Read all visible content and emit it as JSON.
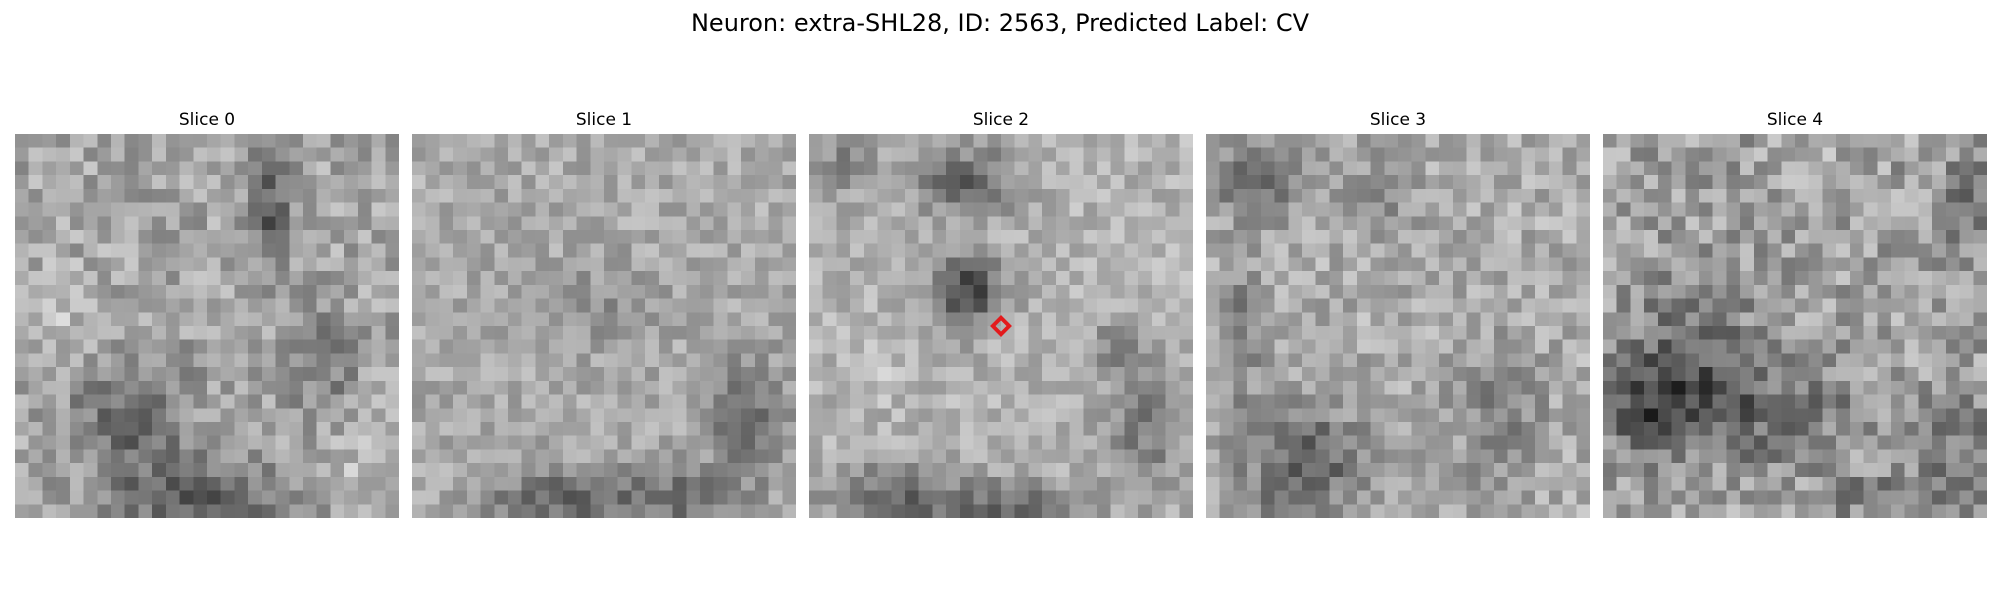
{
  "figure": {
    "title": "Neuron: extra-SHL28, ID: 2563, Predicted Label: CV"
  },
  "panels": [
    {
      "label": "Slice 0"
    },
    {
      "label": "Slice 1"
    },
    {
      "label": "Slice 2"
    },
    {
      "label": "Slice 3"
    },
    {
      "label": "Slice 4"
    }
  ],
  "image_content": {
    "colormap": "grayscale",
    "grid": "28x28",
    "marker_color": "#e31a1c",
    "marker_icon": "diamond-marker-icon",
    "marker_slice": "Slice 2"
  }
}
